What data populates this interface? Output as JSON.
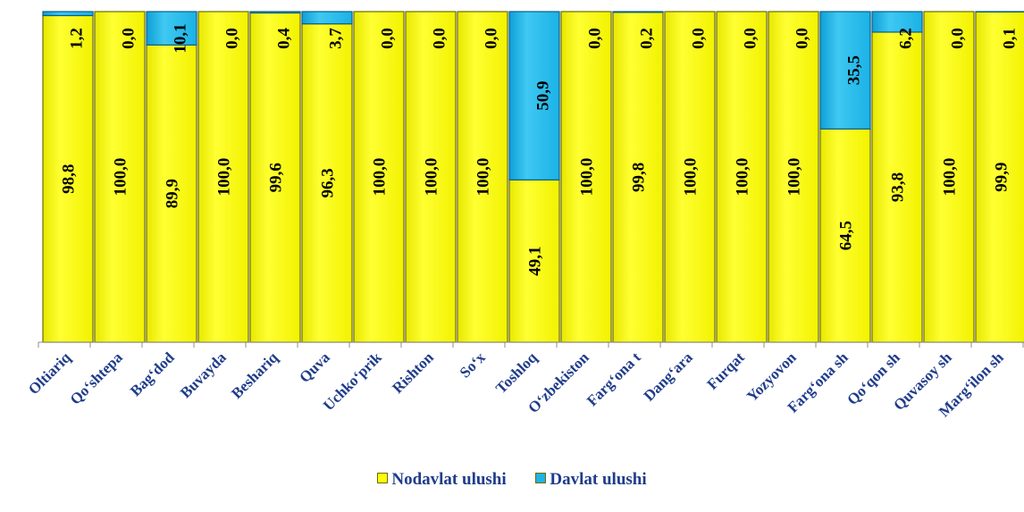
{
  "chart_data": {
    "type": "bar",
    "stacked": true,
    "percent": true,
    "orientation": "vertical",
    "ylim": [
      0,
      100
    ],
    "grid": false,
    "legend_position": "bottom",
    "categories": [
      "Oltiariq",
      "Qo‘shtepa",
      "Bag‘dod",
      "Buvayda",
      "Beshariq",
      "Quva",
      "Uchko‘prik",
      "Rishton",
      "So‘x",
      "Toshloq",
      "O‘zbekiston",
      "Farg‘ona t",
      "Dang‘ara",
      "Furqat",
      "Yozyovon",
      "Farg‘ona sh",
      "Qo‘qon sh",
      "Quvasoy sh",
      "Marg‘ilon sh"
    ],
    "series": [
      {
        "name": "Nodavlat ulushi",
        "color": "#ffff00",
        "values": [
          98.8,
          100.0,
          89.9,
          100.0,
          99.6,
          96.3,
          100.0,
          100.0,
          100.0,
          49.1,
          100.0,
          99.8,
          100.0,
          100.0,
          100.0,
          64.5,
          93.8,
          100.0,
          99.9
        ],
        "labels": [
          "98,8",
          "100,0",
          "89,9",
          "100,0",
          "99,6",
          "96,3",
          "100,0",
          "100,0",
          "100,0",
          "49,1",
          "100,0",
          "99,8",
          "100,0",
          "100,0",
          "100,0",
          "64,5",
          "93,8",
          "100,0",
          "99,9"
        ]
      },
      {
        "name": "Davlat ulushi",
        "color": "#1fb4e6",
        "values": [
          1.2,
          0.0,
          10.1,
          0.0,
          0.4,
          3.7,
          0.0,
          0.0,
          0.0,
          50.9,
          0.0,
          0.2,
          0.0,
          0.0,
          0.0,
          35.5,
          6.2,
          0.0,
          0.1
        ],
        "labels": [
          "1,2",
          "0,0",
          "10,1",
          "0,0",
          "0,4",
          "3,7",
          "0,0",
          "0,0",
          "0,0",
          "50,9",
          "0,0",
          "0,2",
          "0,0",
          "0,0",
          "0,0",
          "35,5",
          "6,2",
          "0,0",
          "0,1"
        ]
      }
    ]
  }
}
